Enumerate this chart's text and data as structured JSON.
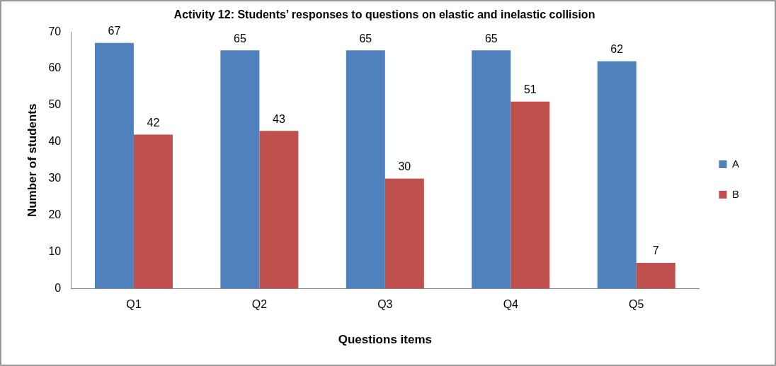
{
  "chart_data": {
    "type": "bar",
    "title": "Activity 12: Students’ responses to questions on elastic and inelastic collision",
    "xlabel": "Questions items",
    "ylabel": "Number of students",
    "categories": [
      "Q1",
      "Q2",
      "Q3",
      "Q4",
      "Q5"
    ],
    "series": [
      {
        "name": "A",
        "color": "#4f81bd",
        "values": [
          67,
          65,
          65,
          65,
          62
        ]
      },
      {
        "name": "B",
        "color": "#c0504d",
        "values": [
          42,
          43,
          30,
          51,
          7
        ]
      }
    ],
    "ylim": [
      0,
      70
    ],
    "yticks": [
      0,
      10,
      20,
      30,
      40,
      50,
      60,
      70
    ],
    "grid": false,
    "legend": "right",
    "data_labels": true
  }
}
